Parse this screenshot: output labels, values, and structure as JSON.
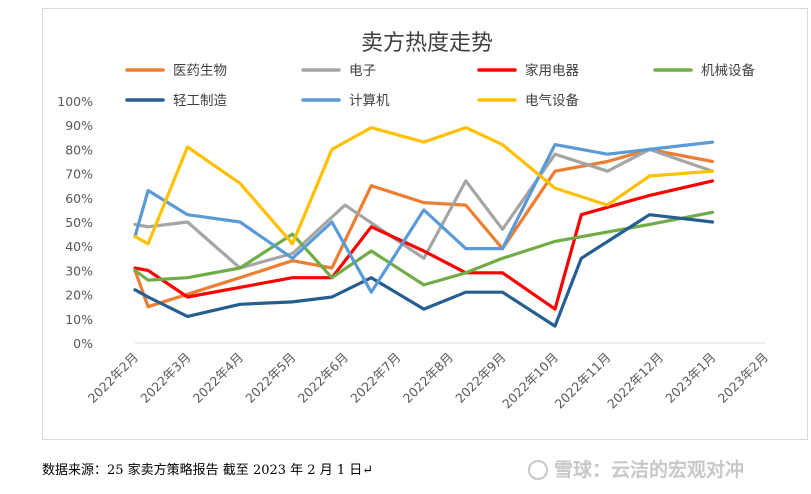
{
  "chart_data": {
    "type": "line",
    "title": "卖方热度走势",
    "categories": [
      "2022年2月",
      "2022年3月",
      "2022年4月",
      "2022年5月",
      "2022年6月",
      "2022年7月",
      "2022年8月",
      "2022年9月",
      "2022年10月",
      "2022年11月",
      "2022年12月",
      "2023年1月",
      "2023年2月"
    ],
    "ylim": [
      0,
      100
    ],
    "yticks": [
      "0%",
      "10%",
      "20%",
      "30%",
      "40%",
      "50%",
      "60%",
      "70%",
      "80%",
      "90%",
      "100%"
    ],
    "grid": false,
    "legend_position": "top",
    "series": [
      {
        "name": "医药生物",
        "color": "#ed7d31",
        "points": [
          [
            0,
            30
          ],
          [
            0.25,
            15
          ],
          [
            2,
            27
          ],
          [
            3,
            34
          ],
          [
            3.75,
            31
          ],
          [
            4.5,
            65
          ],
          [
            5.5,
            58
          ],
          [
            6.3,
            57
          ],
          [
            7,
            39
          ],
          [
            8,
            71
          ],
          [
            9,
            75
          ],
          [
            9.8,
            80
          ],
          [
            11,
            75
          ]
        ]
      },
      {
        "name": "电子",
        "color": "#a5a5a5",
        "points": [
          [
            0,
            49
          ],
          [
            0.25,
            48
          ],
          [
            1,
            50
          ],
          [
            2,
            31
          ],
          [
            3,
            37
          ],
          [
            4,
            57
          ],
          [
            5.5,
            35
          ],
          [
            6.3,
            67
          ],
          [
            7,
            47
          ],
          [
            8,
            78
          ],
          [
            9,
            71
          ],
          [
            9.8,
            80
          ],
          [
            11,
            71
          ]
        ]
      },
      {
        "name": "家用电器",
        "color": "#ff0000",
        "points": [
          [
            0,
            31
          ],
          [
            0.25,
            30
          ],
          [
            1,
            19
          ],
          [
            3,
            27
          ],
          [
            3.75,
            27
          ],
          [
            4.5,
            48
          ],
          [
            5.5,
            38
          ],
          [
            6.3,
            29
          ],
          [
            7,
            29
          ],
          [
            8,
            14
          ],
          [
            8.5,
            53
          ],
          [
            9.8,
            61
          ],
          [
            11,
            67
          ]
        ]
      },
      {
        "name": "机械设备",
        "color": "#70ad47",
        "points": [
          [
            0,
            30
          ],
          [
            0.25,
            26
          ],
          [
            1,
            27
          ],
          [
            2,
            31
          ],
          [
            3,
            45
          ],
          [
            3.75,
            27
          ],
          [
            4.5,
            38
          ],
          [
            5.5,
            24
          ],
          [
            6.3,
            29
          ],
          [
            7,
            35
          ],
          [
            8,
            42
          ],
          [
            9.8,
            49
          ],
          [
            11,
            54
          ]
        ]
      },
      {
        "name": "轻工制造",
        "color": "#255e91",
        "points": [
          [
            0,
            22
          ],
          [
            0.25,
            19
          ],
          [
            1,
            11
          ],
          [
            2,
            16
          ],
          [
            3,
            17
          ],
          [
            3.75,
            19
          ],
          [
            4.5,
            27
          ],
          [
            5.5,
            14
          ],
          [
            6.3,
            21
          ],
          [
            7,
            21
          ],
          [
            8,
            7
          ],
          [
            8.5,
            35
          ],
          [
            9.8,
            53
          ],
          [
            11,
            50
          ]
        ]
      },
      {
        "name": "计算机",
        "color": "#5b9bd5",
        "points": [
          [
            0,
            44
          ],
          [
            0.25,
            63
          ],
          [
            1,
            53
          ],
          [
            2,
            50
          ],
          [
            3,
            35
          ],
          [
            3.75,
            50
          ],
          [
            4.5,
            21
          ],
          [
            5.5,
            55
          ],
          [
            6.3,
            39
          ],
          [
            7,
            39
          ],
          [
            8,
            82
          ],
          [
            9,
            78
          ],
          [
            9.8,
            80
          ],
          [
            11,
            83
          ]
        ]
      },
      {
        "name": "电气设备",
        "color": "#ffc000",
        "points": [
          [
            0,
            44
          ],
          [
            0.25,
            41
          ],
          [
            1,
            81
          ],
          [
            2,
            66
          ],
          [
            3,
            41
          ],
          [
            3.75,
            80
          ],
          [
            4.5,
            89
          ],
          [
            5.5,
            83
          ],
          [
            6.3,
            89
          ],
          [
            7,
            82
          ],
          [
            8,
            64
          ],
          [
            9,
            57
          ],
          [
            9.8,
            69
          ],
          [
            11,
            71
          ]
        ]
      }
    ]
  },
  "footnote": "数据来源：25 家卖方策略报告 截至 2023 年 2 月 1 日↵",
  "watermark": "雪球：云洁的宏观对冲"
}
